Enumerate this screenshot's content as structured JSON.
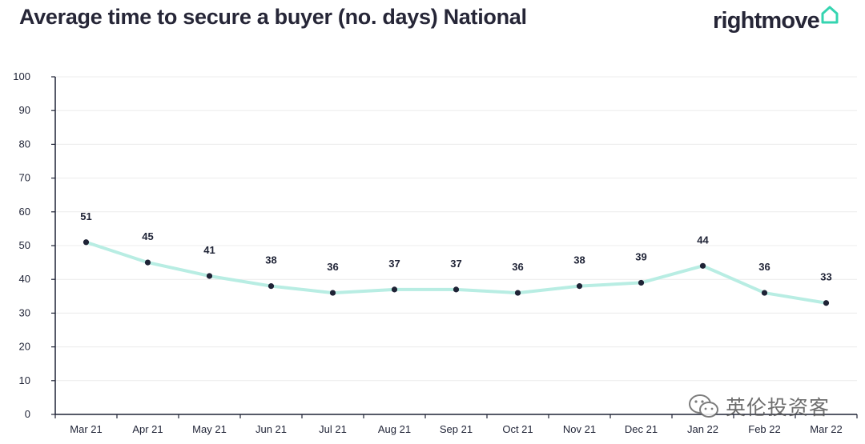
{
  "title": "Average time to secure a buyer (no. days) National",
  "brand": {
    "name": "rightmove",
    "icon": "house-outline-icon",
    "color": "#35d4b0"
  },
  "watermark": {
    "text": "英伦投资客",
    "icon": "wechat-icon"
  },
  "chart_data": {
    "type": "line",
    "categories": [
      "Mar 21",
      "Apr 21",
      "May 21",
      "Jun 21",
      "Jul 21",
      "Aug 21",
      "Sep 21",
      "Oct 21",
      "Nov 21",
      "Dec 21",
      "Jan 22",
      "Feb 22",
      "Mar 22"
    ],
    "values": [
      51,
      45,
      41,
      38,
      36,
      37,
      37,
      36,
      38,
      39,
      44,
      36,
      33
    ],
    "data_labels": [
      "51",
      "45",
      "41",
      "38",
      "36",
      "37",
      "37",
      "36",
      "38",
      "39",
      "44",
      "36",
      "33"
    ],
    "title": "Average time to secure a buyer (no. days) National",
    "xlabel": "",
    "ylabel": "",
    "ylim": [
      0,
      100
    ],
    "yticks": [
      0,
      10,
      20,
      30,
      40,
      50,
      60,
      70,
      80,
      90,
      100
    ],
    "grid": true,
    "line_color": "#b8ede3",
    "marker_color": "#1f2336"
  }
}
